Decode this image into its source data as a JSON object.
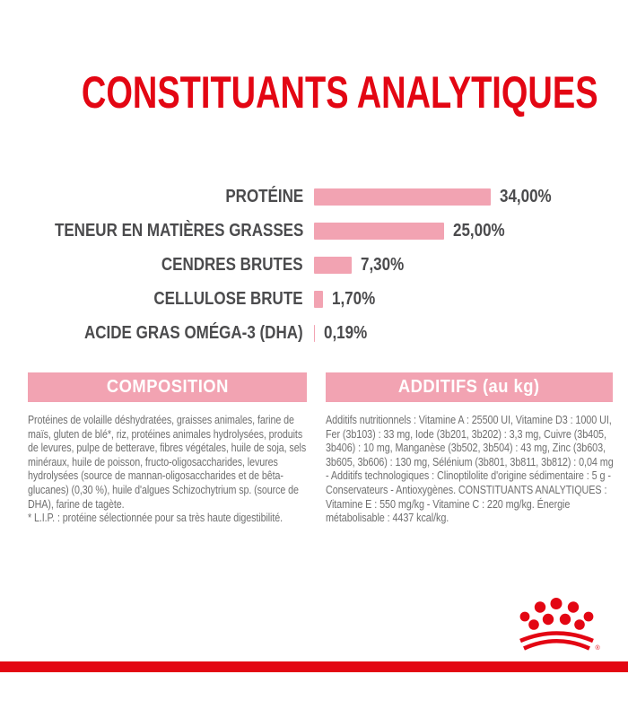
{
  "title": "CONSTITUANTS ANALYTIQUES",
  "chart_data": {
    "type": "bar",
    "orientation": "horizontal",
    "unit": "%",
    "categories": [
      "PROTÉINE",
      "TENEUR EN MATIÈRES GRASSES",
      "CENDRES BRUTES",
      "CELLULOSE BRUTE",
      "ACIDE GRAS OMÉGA-3 (DHA)"
    ],
    "values": [
      34.0,
      25.0,
      7.3,
      1.7,
      0.19
    ],
    "value_labels": [
      "34,00%",
      "25,00%",
      "7,30%",
      "1,70%",
      "0,19%"
    ],
    "xlim": [
      0,
      35
    ],
    "grid": false,
    "legend": "none",
    "bar_color": "#F2A3B2",
    "label_color": "#4B4B4D"
  },
  "composition": {
    "header": "COMPOSITION",
    "body": "Protéines de volaille déshydratées, graisses animales, farine de maïs, gluten de blé*, riz, protéines animales hydrolysées, produits de levures, pulpe de betterave, fibres végétales, huile de soja, sels minéraux, huile de poisson, fructo-oligosaccharides, levures hydrolysées (source de mannan-oligosaccharides et de bêta-glucanes) (0,30 %), huile d'algues Schizochytrium sp. (source de DHA), farine de tagète.",
    "footnote": "* L.I.P. : protéine sélectionnée pour sa très haute digestibilité."
  },
  "additifs": {
    "header": "ADDITIFS (au kg)",
    "body": "Additifs nutritionnels : Vitamine A : 25500 UI, Vitamine D3 : 1000 UI, Fer (3b103) : 33 mg, Iode (3b201, 3b202) : 3,3 mg, Cuivre (3b405, 3b406) : 10 mg, Manganèse (3b502, 3b504) : 43 mg, Zinc (3b603, 3b605, 3b606) : 130 mg, Sélénium (3b801, 3b811, 3b812) : 0,04 mg - Additifs technologiques : Clinoptilolite d'origine sédimentaire : 5 g - Conservateurs - Antioxygènes. CONSTITUANTS ANALYTIQUES : Vitamine E : 550 mg/kg - Vitamine C : 220 mg/kg. Énergie métabolisable : 4437 kcal/kg."
  },
  "brand": {
    "logo_icon": "royal-canin-crown-icon",
    "registered_mark": "®"
  },
  "colors": {
    "brand_red": "#E30613",
    "pink": "#F2A3B2",
    "label_gray": "#4B4B4D",
    "body_gray": "#6F6F6F",
    "background": "#FFFFFF"
  }
}
